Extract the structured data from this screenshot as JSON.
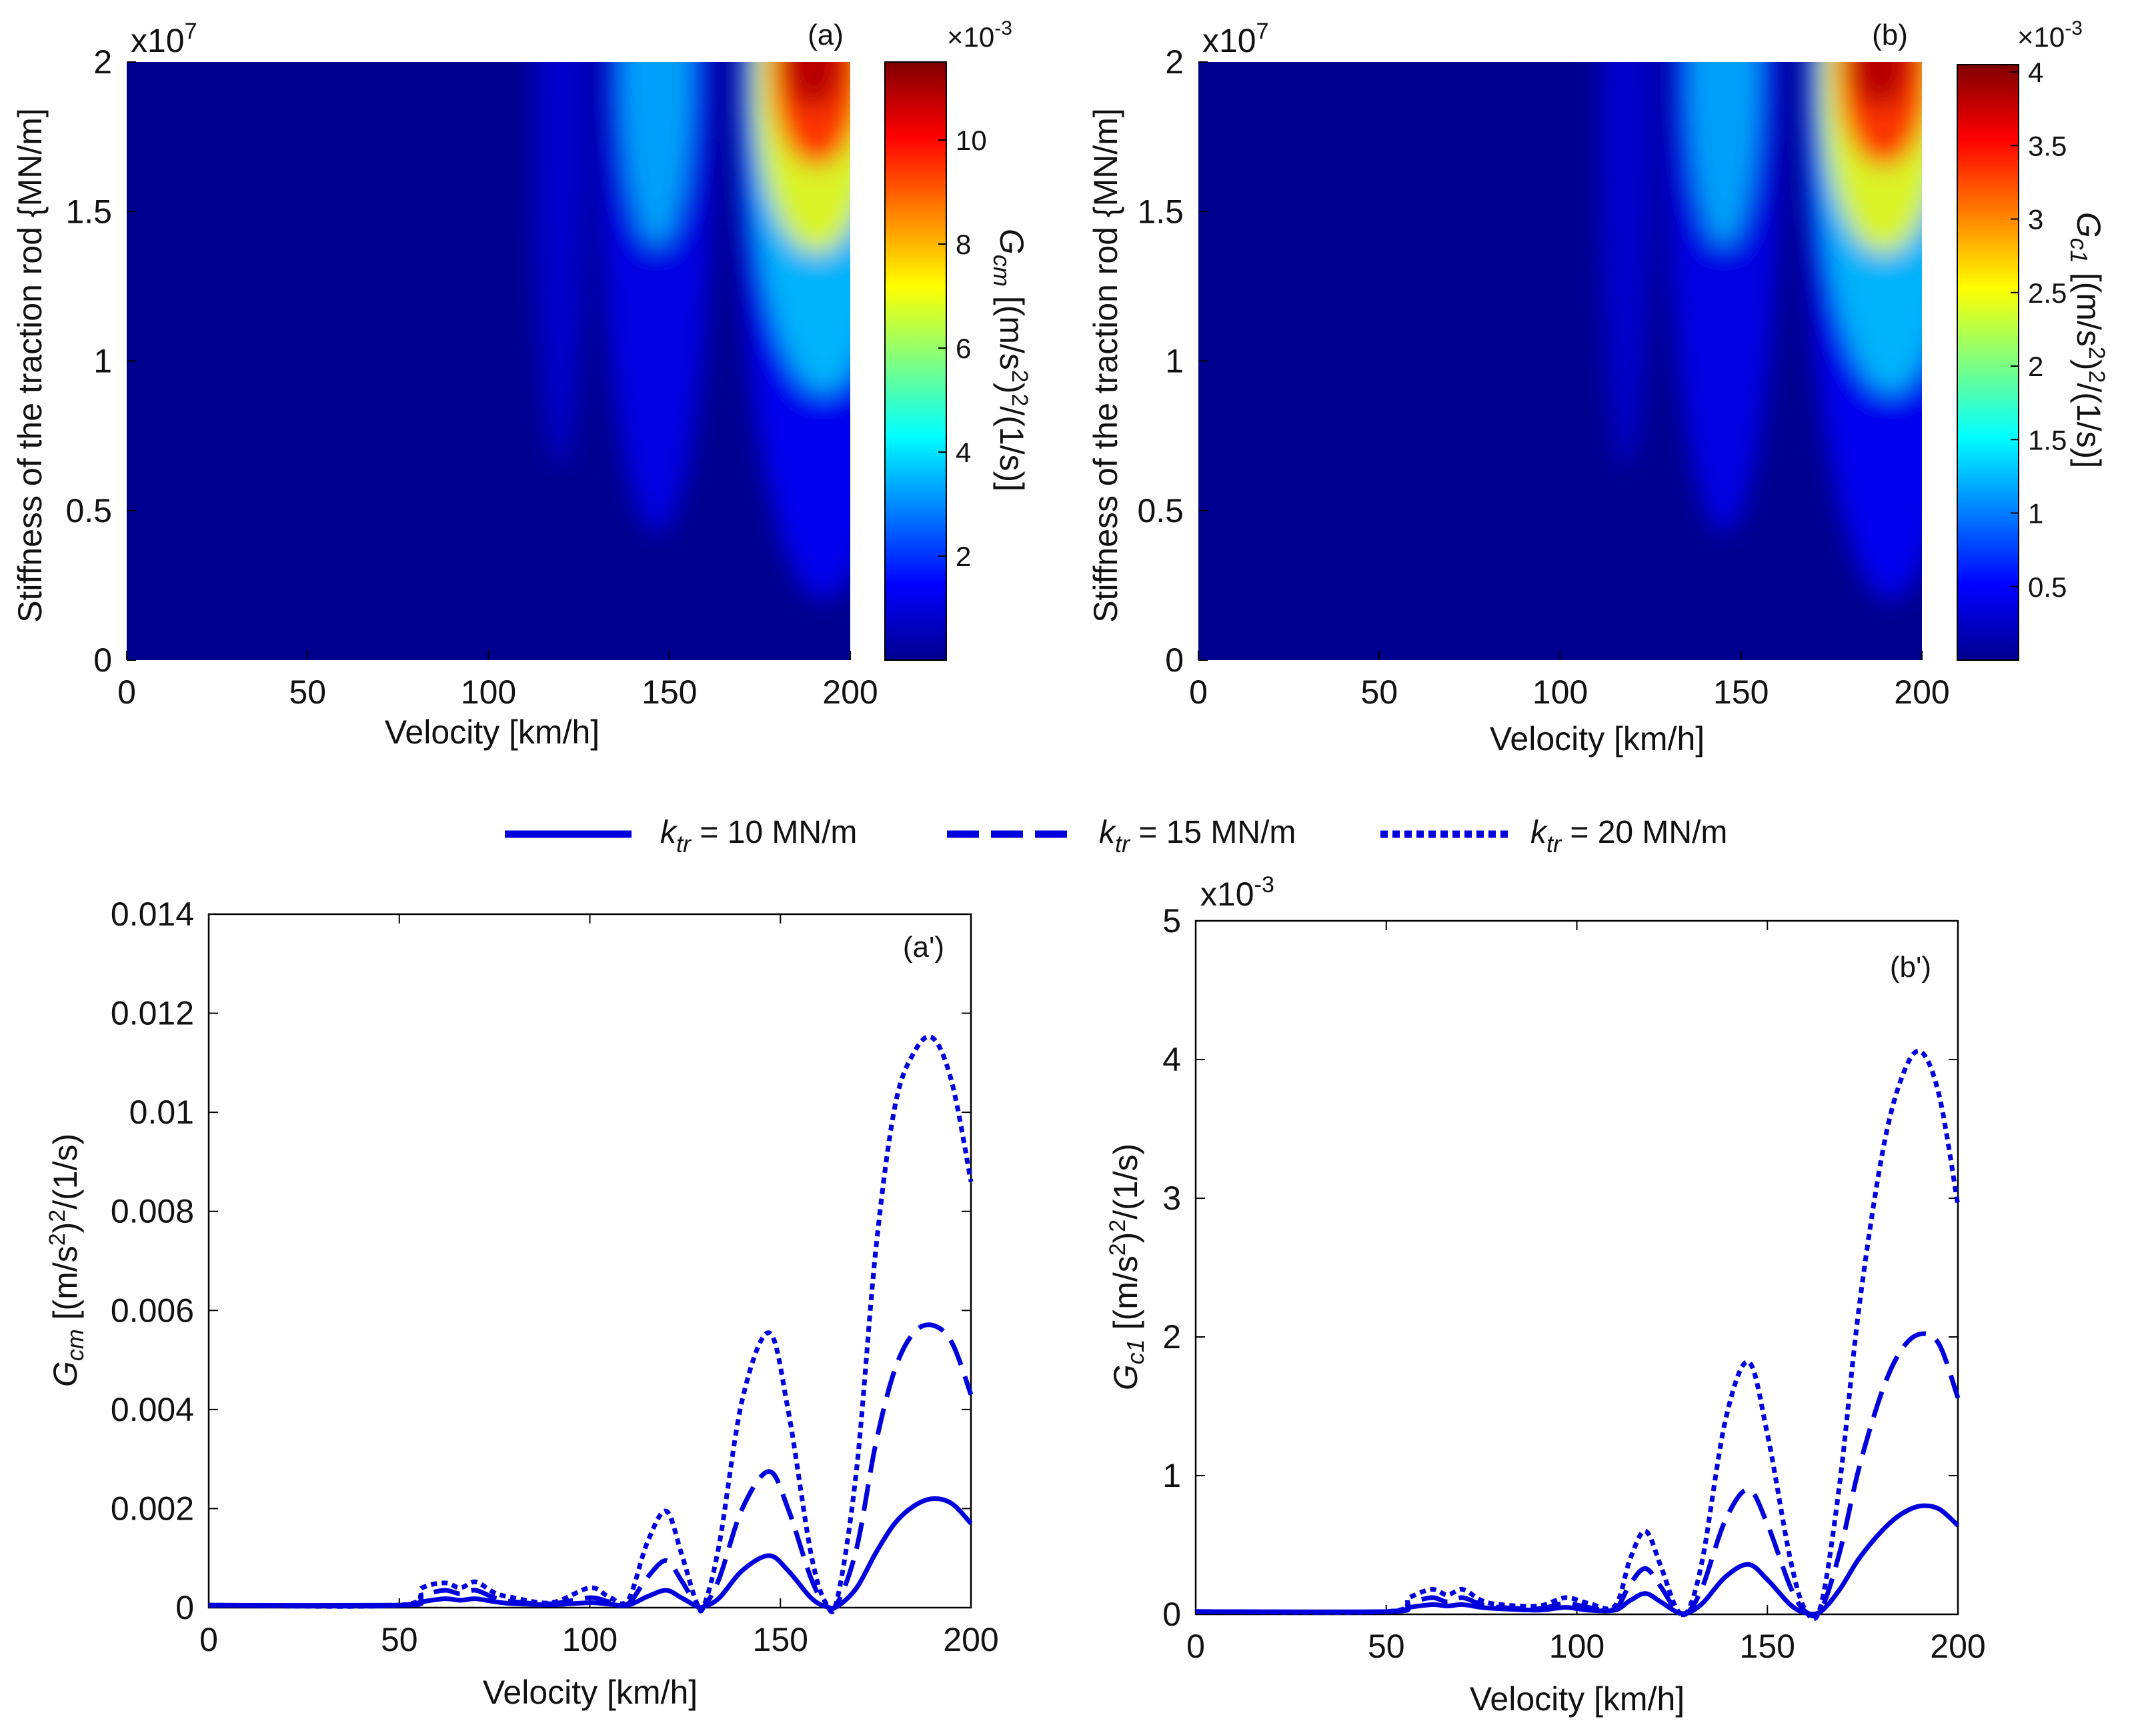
{
  "colors": {
    "series": "#0000dd",
    "colormap": [
      "#00008f",
      "#0000ff",
      "#00ffff",
      "#ffff00",
      "#ff0000",
      "#800000"
    ]
  },
  "legend": {
    "entries": [
      {
        "symbol": "k",
        "sub": "tr",
        "label": " = 10 MN/m",
        "style": "solid"
      },
      {
        "symbol": "k",
        "sub": "tr",
        "label": " = 15 MN/m",
        "style": "dashed"
      },
      {
        "symbol": "k",
        "sub": "tr",
        "label": " = 20 MN/m",
        "style": "dotted"
      }
    ]
  },
  "chart_data": [
    {
      "id": "a",
      "type": "heatmap",
      "panel_label": "(a)",
      "xlabel": "Velocity [km/h]",
      "ylabel": "Stiffness of the traction rod {MN/m]",
      "xlim": [
        0,
        200
      ],
      "ylim": [
        0,
        2
      ],
      "x_ticks": [
        "0",
        "50",
        "100",
        "150",
        "200"
      ],
      "y_ticks": [
        "0",
        "0.5",
        "1",
        "1.5",
        "2"
      ],
      "y_multiplier": "x10",
      "y_multiplier_exp": "7",
      "colorbar": {
        "label_symbol": "G",
        "label_sub": "cm",
        "label_rest": " [(m/s",
        "label_sq1": "2",
        "label_mid": ")",
        "label_sq2": "2",
        "label_end": "/(1/s)]",
        "multiplier": "×10",
        "multiplier_exp": "-3",
        "range": [
          0,
          11.5
        ],
        "ticks": [
          "2",
          "4",
          "6",
          "8",
          "10"
        ],
        "tick_values": [
          2,
          4,
          6,
          8,
          10
        ]
      },
      "hotspots": [
        {
          "x": 190,
          "peak_fraction": 1.0
        },
        {
          "x": 147,
          "peak_fraction": 0.48
        },
        {
          "x": 120,
          "peak_fraction": 0.17
        }
      ]
    },
    {
      "id": "b",
      "type": "heatmap",
      "panel_label": "(b)",
      "xlabel": "Velocity [km/h]",
      "ylabel": "Stiffness of the traction rod {MN/m]",
      "xlim": [
        0,
        200
      ],
      "ylim": [
        0,
        2
      ],
      "x_ticks": [
        "0",
        "50",
        "100",
        "150",
        "200"
      ],
      "y_ticks": [
        "0",
        "0.5",
        "1",
        "1.5",
        "2"
      ],
      "y_multiplier": "x10",
      "y_multiplier_exp": "7",
      "colorbar": {
        "label_symbol": "G",
        "label_sub": "c1",
        "label_rest": " [(m/s",
        "label_sq1": "2",
        "label_mid": ")",
        "label_sq2": "2",
        "label_end": "/(1/s)]",
        "multiplier": "×10",
        "multiplier_exp": "-3",
        "range": [
          0,
          4.05
        ],
        "ticks": [
          "0.5",
          "1",
          "1.5",
          "2",
          "2.5",
          "3",
          "3.5",
          "4"
        ],
        "tick_values": [
          0.5,
          1,
          1.5,
          2,
          2.5,
          3,
          3.5,
          4
        ]
      },
      "hotspots": [
        {
          "x": 190,
          "peak_fraction": 1.0
        },
        {
          "x": 145,
          "peak_fraction": 0.45
        },
        {
          "x": 118,
          "peak_fraction": 0.15
        }
      ]
    },
    {
      "id": "a_prime",
      "type": "line",
      "panel_label": "(a')",
      "xlabel": "Velocity [km/h]",
      "ylabel_symbol": "G",
      "ylabel_sub": "cm",
      "ylabel_rest": " [(m/s",
      "ylabel_sq1": "2",
      "ylabel_mid": ")",
      "ylabel_sq2": "2",
      "ylabel_end": "/(1/s)",
      "xlim": [
        0,
        200
      ],
      "ylim": [
        0,
        0.014
      ],
      "x_ticks": [
        "0",
        "50",
        "100",
        "150",
        "200"
      ],
      "y_ticks": [
        "0",
        "0.002",
        "0.004",
        "0.006",
        "0.008",
        "0.01",
        "0.012",
        "0.014"
      ],
      "y_tick_values": [
        0,
        0.002,
        0.004,
        0.006,
        0.008,
        0.01,
        0.012,
        0.014
      ],
      "x": [
        0,
        50,
        56,
        62,
        66,
        70,
        75,
        80,
        90,
        100,
        105,
        110,
        115,
        120,
        124,
        128,
        130,
        134,
        140,
        147,
        152,
        158,
        162,
        165,
        170,
        175,
        180,
        185,
        190,
        195,
        200
      ],
      "series": [
        {
          "name": "k_tr = 10 MN/m",
          "style": "solid",
          "values": [
            5e-05,
            5e-05,
            0.00012,
            0.00018,
            0.00015,
            0.00018,
            0.00012,
            8e-05,
            6e-05,
            0.0001,
            7e-05,
            5e-05,
            0.00022,
            0.00035,
            0.0002,
            3e-05,
            2e-05,
            0.0002,
            0.00075,
            0.00105,
            0.00075,
            0.0002,
            2e-05,
            3e-05,
            0.0004,
            0.0011,
            0.0017,
            0.00205,
            0.0022,
            0.0021,
            0.0017
          ]
        },
        {
          "name": "k_tr = 15 MN/m",
          "style": "dashed",
          "values": [
            5e-05,
            5e-05,
            0.00025,
            0.00035,
            0.00028,
            0.00035,
            0.0002,
            0.00012,
            8e-05,
            0.0002,
            0.00012,
            8e-05,
            0.0006,
            0.00095,
            0.00055,
            5e-05,
            3e-05,
            0.0006,
            0.002,
            0.00275,
            0.002,
            0.0006,
            4e-05,
            0.0001,
            0.0012,
            0.0033,
            0.0048,
            0.00555,
            0.0057,
            0.00535,
            0.0043
          ]
        },
        {
          "name": "k_tr = 20 MN/m",
          "style": "dotted",
          "values": [
            5e-05,
            5e-05,
            0.0004,
            0.0005,
            0.0004,
            0.00052,
            0.0003,
            0.0002,
            0.0001,
            0.0004,
            0.00022,
            0.00015,
            0.0013,
            0.00195,
            0.0011,
            0.0001,
            5e-05,
            0.0013,
            0.0042,
            0.00555,
            0.004,
            0.0011,
            8e-05,
            0.0002,
            0.0028,
            0.0072,
            0.0101,
            0.0112,
            0.0115,
            0.0106,
            0.0086
          ]
        }
      ]
    },
    {
      "id": "b_prime",
      "type": "line",
      "panel_label": "(b')",
      "xlabel": "Velocity [km/h]",
      "ylabel_symbol": "G",
      "ylabel_sub": "c1",
      "ylabel_rest": " [(m/s",
      "ylabel_sq1": "2",
      "ylabel_mid": ")",
      "ylabel_sq2": "2",
      "ylabel_end": "/(1/s)",
      "y_multiplier": "x10",
      "y_multiplier_exp": "-3",
      "xlim": [
        0,
        200
      ],
      "ylim": [
        0,
        5
      ],
      "x_ticks": [
        "0",
        "50",
        "100",
        "150",
        "200"
      ],
      "y_ticks": [
        "0",
        "1",
        "2",
        "3",
        "4",
        "5"
      ],
      "y_tick_values": [
        0,
        1,
        2,
        3,
        4,
        5
      ],
      "x": [
        0,
        50,
        56,
        62,
        66,
        70,
        75,
        80,
        90,
        97,
        103,
        110,
        114,
        118,
        122,
        126,
        129,
        133,
        139,
        145,
        150,
        156,
        160,
        164,
        169,
        174,
        180,
        185,
        190,
        195,
        200
      ],
      "series": [
        {
          "name": "k_tr = 10 MN/m",
          "style": "solid",
          "values": [
            0.02,
            0.02,
            0.05,
            0.07,
            0.06,
            0.07,
            0.05,
            0.04,
            0.03,
            0.05,
            0.03,
            0.03,
            0.1,
            0.15,
            0.09,
            0.02,
            0.01,
            0.08,
            0.27,
            0.36,
            0.25,
            0.07,
            0.01,
            0.02,
            0.18,
            0.4,
            0.6,
            0.72,
            0.78,
            0.76,
            0.64
          ]
        },
        {
          "name": "k_tr = 15 MN/m",
          "style": "dashed",
          "values": [
            0.02,
            0.02,
            0.08,
            0.12,
            0.09,
            0.12,
            0.07,
            0.05,
            0.04,
            0.08,
            0.05,
            0.04,
            0.22,
            0.33,
            0.2,
            0.03,
            0.01,
            0.2,
            0.68,
            0.9,
            0.65,
            0.2,
            0.02,
            0.03,
            0.45,
            1.05,
            1.6,
            1.9,
            2.02,
            1.95,
            1.56
          ]
        },
        {
          "name": "k_tr = 20 MN/m",
          "style": "dotted",
          "values": [
            0.02,
            0.02,
            0.12,
            0.18,
            0.14,
            0.18,
            0.1,
            0.07,
            0.06,
            0.12,
            0.08,
            0.06,
            0.4,
            0.6,
            0.35,
            0.05,
            0.02,
            0.4,
            1.4,
            1.82,
            1.3,
            0.4,
            0.03,
            0.06,
            0.95,
            2.2,
            3.3,
            3.85,
            4.06,
            3.75,
            2.95
          ]
        }
      ]
    }
  ]
}
